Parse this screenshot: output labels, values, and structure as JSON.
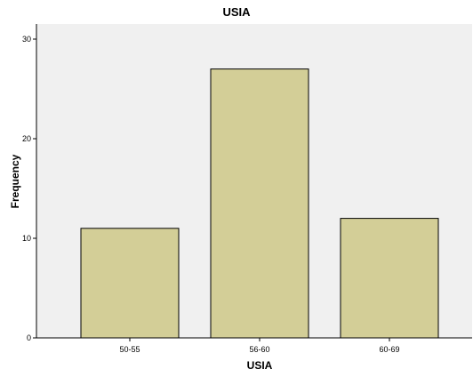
{
  "chart_data": {
    "type": "bar",
    "title": "USIA",
    "xlabel": "USIA",
    "ylabel": "Frequency",
    "categories": [
      "50-55",
      "56-60",
      "60-69"
    ],
    "values": [
      11,
      27,
      12
    ],
    "ylim": [
      0,
      30
    ],
    "yticks": [
      0,
      10,
      20,
      30
    ],
    "grid": false,
    "legend": "none",
    "colors": {
      "plot_background": "#f0f0f0",
      "bar_fill": "#d3ce97",
      "bar_stroke": "#000000",
      "axis": "#000000"
    }
  }
}
